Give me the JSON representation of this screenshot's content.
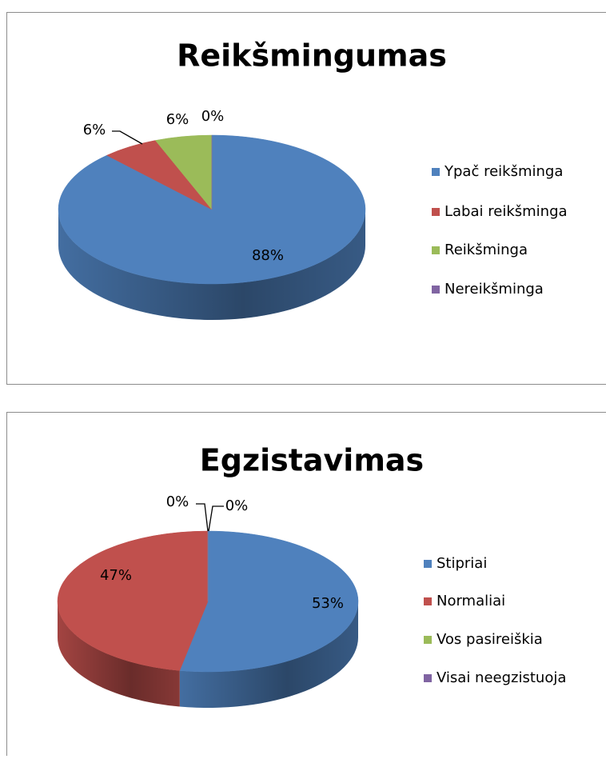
{
  "chart_data": [
    {
      "type": "pie",
      "title": "Reikšmingumas",
      "categories": [
        "Ypač reikšminga",
        "Labai reikšminga",
        "Reikšminga",
        "Nereikšminga"
      ],
      "values": [
        88,
        6,
        6,
        0
      ],
      "value_labels": [
        "88%",
        "6%",
        "6%",
        "0%"
      ],
      "colors": [
        "#4f81bd",
        "#c0504d",
        "#9bbb59",
        "#8064a2"
      ]
    },
    {
      "type": "pie",
      "title": "Egzistavimas",
      "categories": [
        "Stipriai",
        "Normaliai",
        "Vos pasireiškia",
        "Visai neegzistuoja"
      ],
      "values": [
        53,
        47,
        0,
        0
      ],
      "value_labels": [
        "53%",
        "47%",
        "0%",
        "0%"
      ],
      "colors": [
        "#4f81bd",
        "#c0504d",
        "#9bbb59",
        "#8064a2"
      ]
    }
  ]
}
